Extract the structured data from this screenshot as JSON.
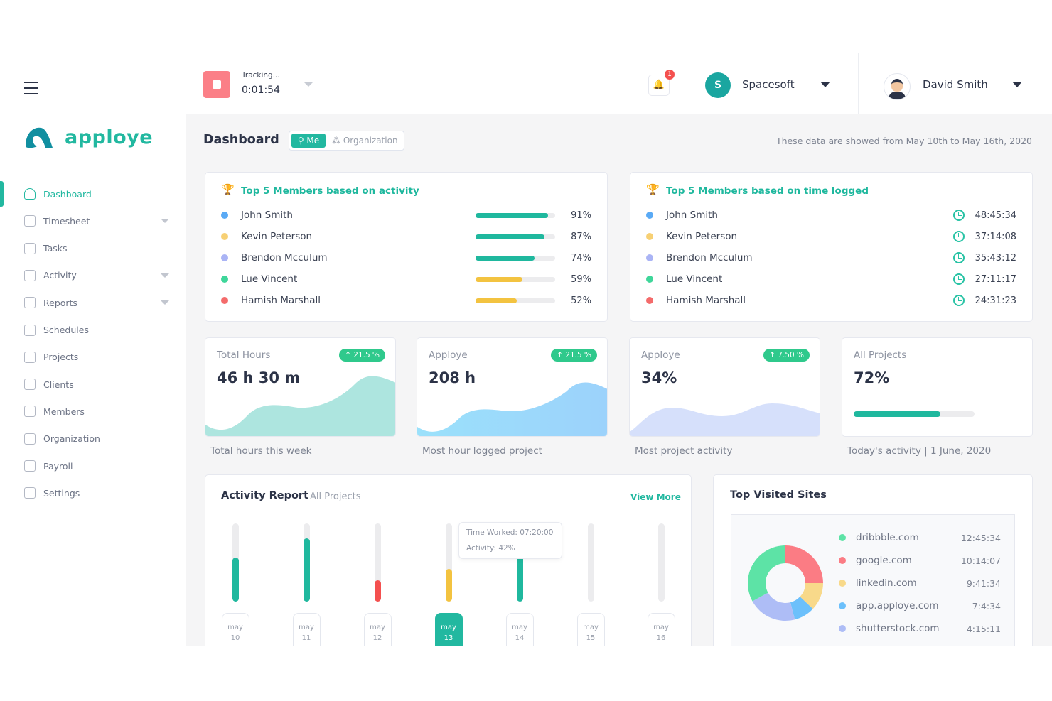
{
  "app": {
    "name": "apploye"
  },
  "sidebar": {
    "items": [
      {
        "label": "Dashboard",
        "icon": "gauge-icon",
        "active": true
      },
      {
        "label": "Timesheet",
        "icon": "timesheet-icon",
        "dropdown": true
      },
      {
        "label": "Tasks",
        "icon": "list-icon"
      },
      {
        "label": "Activity",
        "icon": "pulse-icon",
        "dropdown": true
      },
      {
        "label": "Reports",
        "icon": "document-icon",
        "dropdown": true
      },
      {
        "label": "Schedules",
        "icon": "calendar-icon"
      },
      {
        "label": "Projects",
        "icon": "file-icon"
      },
      {
        "label": "Clients",
        "icon": "client-icon"
      },
      {
        "label": "Members",
        "icon": "members-icon"
      },
      {
        "label": "Organization",
        "icon": "organization-icon"
      },
      {
        "label": "Payroll",
        "icon": "wallet-icon"
      },
      {
        "label": "Settings",
        "icon": "gear-icon"
      }
    ]
  },
  "header": {
    "tracking_label": "Tracking...",
    "timer": "0:01:54",
    "notification_count": "1",
    "org_initial": "S",
    "org_name": "Spacesoft",
    "user_name": "David Smith"
  },
  "page": {
    "title": "Dashboard",
    "toggle": {
      "me": "Me",
      "org": "Organization",
      "selected": "Me"
    },
    "date_range": "These data are showed from May 10th to May 16th, 2020"
  },
  "top_activity": {
    "title": "Top 5 Members based on activity",
    "members": [
      {
        "name": "John Smith",
        "pct": "91%",
        "value": 91,
        "dot": "#5aaaf5",
        "bar": "#1fb89e"
      },
      {
        "name": "Kevin Peterson",
        "pct": "87%",
        "value": 87,
        "dot": "#f7d074",
        "bar": "#1fb89e"
      },
      {
        "name": "Brendon Mcculum",
        "pct": "74%",
        "value": 74,
        "dot": "#aab4f5",
        "bar": "#1fb89e"
      },
      {
        "name": "Lue Vincent",
        "pct": "59%",
        "value": 59,
        "dot": "#3fd69a",
        "bar": "#f3c340"
      },
      {
        "name": "Hamish Marshall",
        "pct": "52%",
        "value": 52,
        "dot": "#f46b6b",
        "bar": "#f3c340"
      }
    ]
  },
  "top_time": {
    "title": "Top 5 Members based on time logged",
    "members": [
      {
        "name": "John Smith",
        "time": "48:45:34",
        "dot": "#5aaaf5"
      },
      {
        "name": "Kevin Peterson",
        "time": "37:14:08",
        "dot": "#f7d074"
      },
      {
        "name": "Brendon Mcculum",
        "time": "35:43:12",
        "dot": "#aab4f5"
      },
      {
        "name": "Lue Vincent",
        "time": "27:11:17",
        "dot": "#3fd69a"
      },
      {
        "name": "Hamish Marshall",
        "time": "24:31:23",
        "dot": "#f46b6b"
      }
    ]
  },
  "stats": [
    {
      "label": "Total Hours",
      "value": "46 h 30 m",
      "badge": "↑ 21.5 %",
      "caption": "Total hours this week"
    },
    {
      "label": "Apploye",
      "value": "208 h",
      "badge": "↑ 21.5 %",
      "caption": "Most hour logged project"
    },
    {
      "label": "Apploye",
      "value": "34%",
      "badge": "↑ 7.50 %",
      "caption": "Most project activity"
    },
    {
      "label": "All Projects",
      "value": "72%",
      "progress": 72,
      "caption": "Today's activity  |  1 June, 2020"
    }
  ],
  "activity_report": {
    "title": "Activity Report",
    "filter": "All Projects",
    "view_more": "View More",
    "tooltip": {
      "time": "Time Worked: 07:20:00",
      "activity": "Activity: 42%"
    },
    "days": [
      {
        "m": "may",
        "d": "10",
        "level": 0.56,
        "color": "#1fb89e"
      },
      {
        "m": "may",
        "d": "11",
        "level": 0.81,
        "color": "#1fb89e"
      },
      {
        "m": "may",
        "d": "12",
        "level": 0.27,
        "color": "#f4504f"
      },
      {
        "m": "may",
        "d": "13",
        "level": 0.42,
        "color": "#f3c340",
        "selected": true
      },
      {
        "m": "may",
        "d": "14",
        "level": 0.6,
        "color": "#1fb89e"
      },
      {
        "m": "may",
        "d": "15",
        "level": 0,
        "color": "#1fb89e"
      },
      {
        "m": "may",
        "d": "16",
        "level": 0,
        "color": "#1fb89e"
      }
    ]
  },
  "top_sites": {
    "title": "Top Visited Sites",
    "sites": [
      {
        "name": "dribbble.com",
        "time": "12:45:34",
        "color": "#5de3a6",
        "share": 0.33
      },
      {
        "name": "google.com",
        "time": "10:14:07",
        "color": "#fb7c84",
        "share": 0.25
      },
      {
        "name": "linkedin.com",
        "time": "9:41:34",
        "color": "#f8d98a",
        "share": 0.12
      },
      {
        "name": "app.apploye.com",
        "time": "7:4:34",
        "color": "#6cc0fb",
        "share": 0.09
      },
      {
        "name": "shutterstock.com",
        "time": "4:15:11",
        "color": "#aebdf6",
        "share": 0.21
      }
    ]
  }
}
